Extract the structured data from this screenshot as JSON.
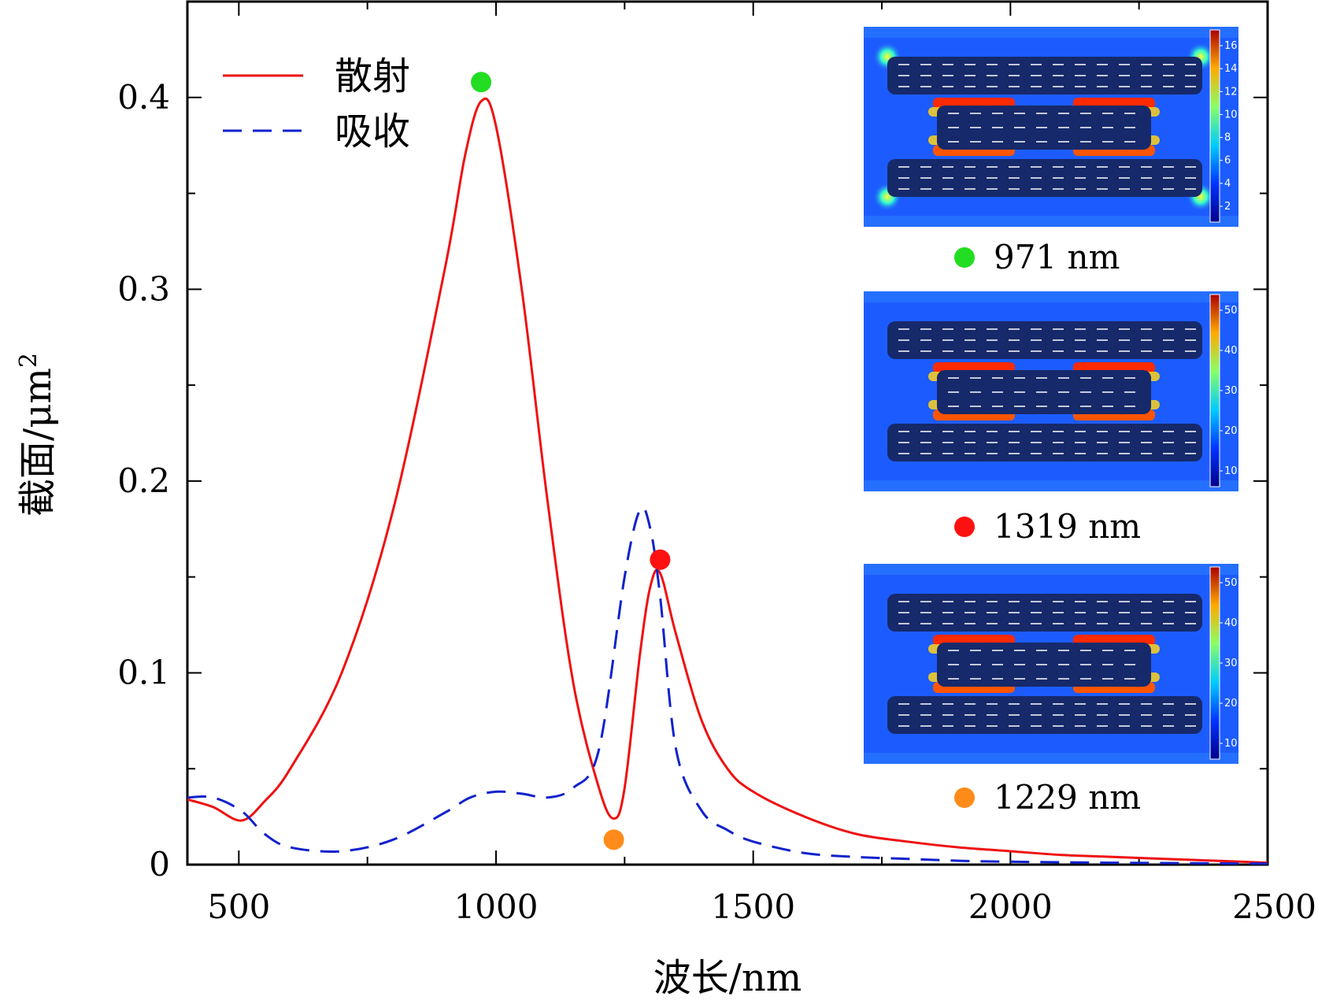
{
  "chart_data": {
    "type": "line",
    "xlabel": "波长/nm",
    "ylabel": "截面/μm",
    "ylabel_superscript": "2",
    "xlim": [
      400,
      2500
    ],
    "ylim": [
      0,
      0.45
    ],
    "x_ticks": [
      "500",
      "1000",
      "1500",
      "2000",
      "2500"
    ],
    "y_ticks": [
      "0",
      "0.1",
      "0.2",
      "0.3",
      "0.4"
    ],
    "grid": false,
    "legend_position": "top-left",
    "series": [
      {
        "name": "散射",
        "style": "solid",
        "color": "#ee1111",
        "x": [
          400,
          450,
          505,
          550,
          600,
          700,
          800,
          900,
          940,
          971,
          1000,
          1050,
          1100,
          1150,
          1200,
          1229,
          1250,
          1280,
          1300,
          1319,
          1350,
          1400,
          1450,
          1500,
          1600,
          1700,
          1800,
          1900,
          2000,
          2100,
          2200,
          2300,
          2400,
          2500
        ],
        "y": [
          0.034,
          0.03,
          0.023,
          0.033,
          0.05,
          0.1,
          0.185,
          0.31,
          0.37,
          0.398,
          0.385,
          0.3,
          0.19,
          0.095,
          0.04,
          0.024,
          0.04,
          0.11,
          0.145,
          0.152,
          0.12,
          0.075,
          0.05,
          0.038,
          0.025,
          0.016,
          0.012,
          0.009,
          0.007,
          0.005,
          0.004,
          0.003,
          0.002,
          0.001
        ]
      },
      {
        "name": "吸收",
        "style": "dashed",
        "color": "#1122cc",
        "x": [
          400,
          450,
          505,
          550,
          600,
          700,
          800,
          900,
          950,
          1000,
          1050,
          1100,
          1150,
          1200,
          1250,
          1280,
          1300,
          1319,
          1350,
          1400,
          1450,
          1500,
          1600,
          1700,
          1800,
          1900,
          2000,
          2200,
          2500
        ],
        "y": [
          0.035,
          0.035,
          0.028,
          0.016,
          0.009,
          0.007,
          0.013,
          0.027,
          0.035,
          0.038,
          0.037,
          0.035,
          0.04,
          0.06,
          0.15,
          0.185,
          0.175,
          0.14,
          0.06,
          0.028,
          0.018,
          0.012,
          0.006,
          0.004,
          0.003,
          0.002,
          0.0015,
          0.001,
          0.0005
        ]
      }
    ],
    "markers": [
      {
        "x": 971,
        "y": 0.408,
        "color": "#22dd22"
      },
      {
        "x": 1319,
        "y": 0.159,
        "color": "#ff1111"
      },
      {
        "x": 1229,
        "y": 0.013,
        "color": "#ff8c1a"
      }
    ],
    "insets": [
      {
        "label": "971 nm",
        "color": "#22dd22",
        "colorbar_ticks": [
          "16",
          "14",
          "12",
          "10",
          "8",
          "6",
          "4",
          "2"
        ]
      },
      {
        "label": "1319 nm",
        "color": "#ff1111",
        "colorbar_ticks": [
          "50",
          "40",
          "30",
          "20",
          "10"
        ]
      },
      {
        "label": "1229 nm",
        "color": "#ff8c1a",
        "colorbar_ticks": [
          "50",
          "40",
          "30",
          "20",
          "10"
        ]
      }
    ]
  }
}
